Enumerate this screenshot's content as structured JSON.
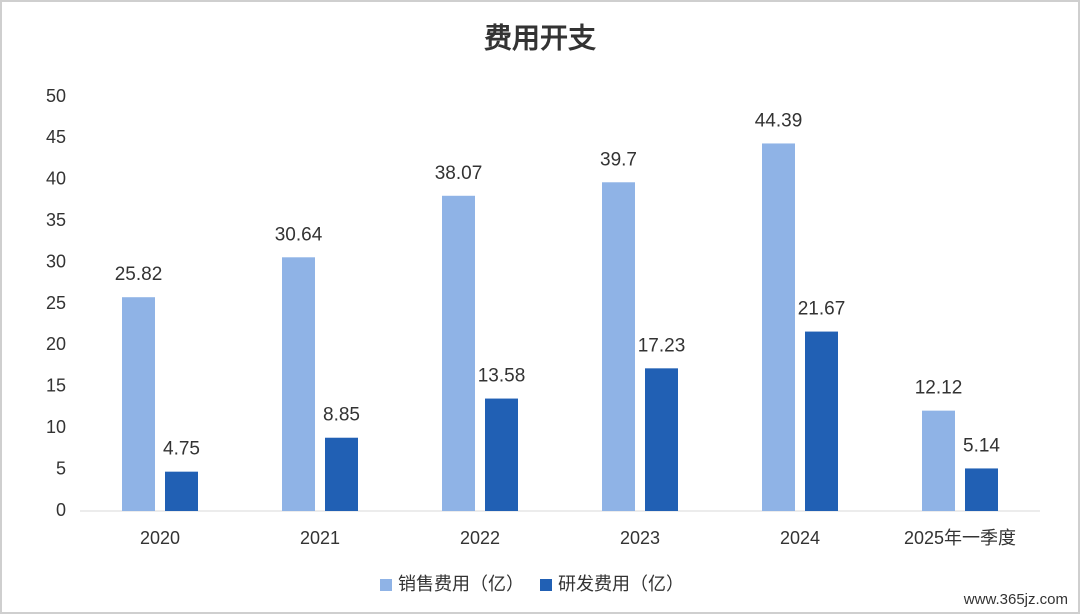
{
  "chart_data": {
    "type": "bar",
    "title": "费用开支",
    "categories": [
      "2020",
      "2021",
      "2022",
      "2023",
      "2024",
      "2025年一季度"
    ],
    "series": [
      {
        "name": "销售费用（亿）",
        "color": "#8fb3e6",
        "values": [
          25.82,
          30.64,
          38.07,
          39.7,
          44.39,
          12.12
        ]
      },
      {
        "name": "研发费用（亿）",
        "color": "#2160b4",
        "values": [
          4.75,
          8.85,
          13.58,
          17.23,
          21.67,
          5.14
        ]
      }
    ],
    "ylim": [
      0,
      50
    ],
    "yticks": [
      0,
      5,
      10,
      15,
      20,
      25,
      30,
      35,
      40,
      45,
      50
    ],
    "grid": false,
    "legend": "bottom"
  },
  "footer": "www.365jz.com"
}
